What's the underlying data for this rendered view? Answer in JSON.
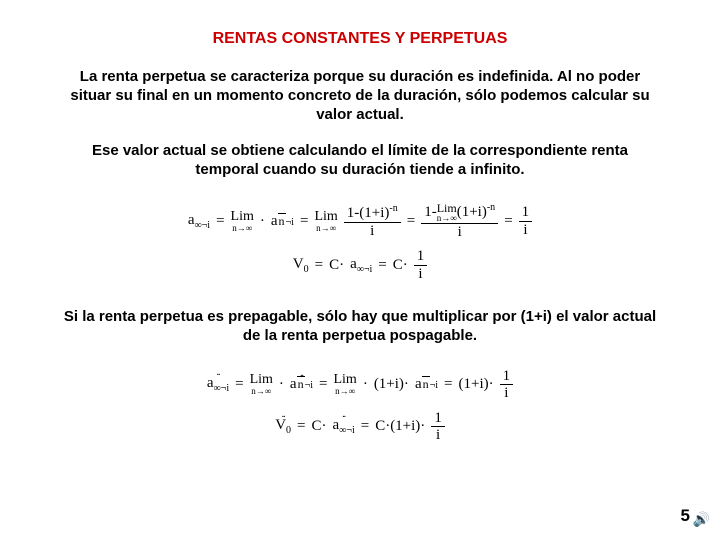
{
  "title": "RENTAS CONSTANTES Y PERPETUAS",
  "paragraphs": {
    "p1": "La renta perpetua se caracteriza porque su duración es indefinida. Al no poder situar su final en un momento concreto de la duración, sólo podemos calcular su valor actual.",
    "p2": "Ese valor actual se obtiene calculando el límite de la correspondiente renta temporal cuando su duración tiende a infinito.",
    "p3": "Si la renta perpetua es prepagable, sólo hay que multiplicar por (1+i) el valor actual de la renta perpetua pospagable."
  },
  "formulas": {
    "f1": {
      "lhs_sym": "a",
      "lhs_sub": "∞¬i",
      "lim_label": "Lim",
      "lim_sub": "n→∞",
      "ann_sym": "a",
      "ann_sub1": "n",
      "ann_sub2": "¬i",
      "frac1_num": "1-(1+i)",
      "frac1_exp": "-n",
      "frac1_den": "i",
      "frac2_num_pre": "1-",
      "frac2_num_lim": "Lim",
      "frac2_num_limsub": "n→∞",
      "frac2_num_post": "(1+i)",
      "frac2_num_exp": "-n",
      "frac2_den": "i",
      "rhs_num": "1",
      "rhs_den": "i"
    },
    "f2": {
      "lhs": "V",
      "lhs_sub": "0",
      "mid1": "C·",
      "mid_sym": "a",
      "mid_sub": "∞¬i",
      "mid2": "C·",
      "frac_num": "1",
      "frac_den": "i"
    },
    "f3": {
      "lhs_sym": "a",
      "lhs_sub": "∞¬i",
      "lim_label": "Lim",
      "lim_sub": "n→∞",
      "ann_sym": "a",
      "ann_sub1": "n",
      "ann_sub2": "¬i",
      "mid": "(1+i)·",
      "rhs_num": "1",
      "rhs_den": "i",
      "factor": "(1+i)·"
    },
    "f4": {
      "lhs": "V",
      "lhs_sub": "0",
      "mid1": "C·",
      "mid_sym": "a",
      "mid_sub": "∞¬i",
      "mid2_pre": "C·(1+i)·",
      "frac_num": "1",
      "frac_den": "i"
    }
  },
  "page_number": "5",
  "colors": {
    "title": "#cc0000",
    "text": "#000000",
    "bg": "#ffffff"
  },
  "fonts": {
    "body": "Arial",
    "formula": "Times New Roman",
    "title_size": 16,
    "para_size": 15,
    "formula_size": 15
  }
}
